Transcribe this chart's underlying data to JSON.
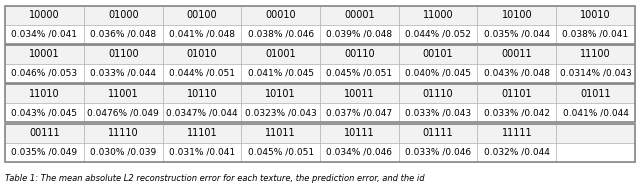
{
  "rows": [
    {
      "labels": [
        "10000",
        "01000",
        "00100",
        "00010",
        "00001",
        "11000",
        "10100",
        "10010"
      ],
      "values": [
        "0.034% /0.041",
        "0.036% /0.048",
        "0.041% /0.048",
        "0.038% /0.046",
        "0.039% /0.048",
        "0.044% /0.052",
        "0.035% /0.044",
        "0.038% /0.041"
      ]
    },
    {
      "labels": [
        "10001",
        "01100",
        "01010",
        "01001",
        "00110",
        "00101",
        "00011",
        "11100"
      ],
      "values": [
        "0.046% /0.053",
        "0.033% /0.044",
        "0.044% /0.051",
        "0.041% /0.045",
        "0.045% /0.051",
        "0.040% /0.045",
        "0.043% /0.048",
        "0.0314% /0.043"
      ]
    },
    {
      "labels": [
        "11010",
        "11001",
        "10110",
        "10101",
        "10011",
        "01110",
        "01101",
        "01011"
      ],
      "values": [
        "0.043% /0.045",
        "0.0476% /0.049",
        "0.0347% /0.044",
        "0.0323% /0.043",
        "0.037% /0.047",
        "0.033% /0.043",
        "0.033% /0.042",
        "0.041% /0.044"
      ]
    },
    {
      "labels": [
        "00111",
        "11110",
        "11101",
        "11011",
        "10111",
        "01111",
        "11111",
        ""
      ],
      "values": [
        "0.035% /0.049",
        "0.030% /0.039",
        "0.031% /0.041",
        "0.045% /0.051",
        "0.034% /0.046",
        "0.033% /0.046",
        "0.032% /0.044",
        ""
      ]
    }
  ],
  "caption": "Table 1: The mean absolute L2 reconstruction error for each texture, the prediction error, and the id",
  "ncols": 8,
  "border_color": "#aaaaaa",
  "outer_border_color": "#888888",
  "label_fontsize": 7.0,
  "value_fontsize": 6.5,
  "caption_fontsize": 6.0,
  "fig_width": 6.4,
  "fig_height": 1.88
}
